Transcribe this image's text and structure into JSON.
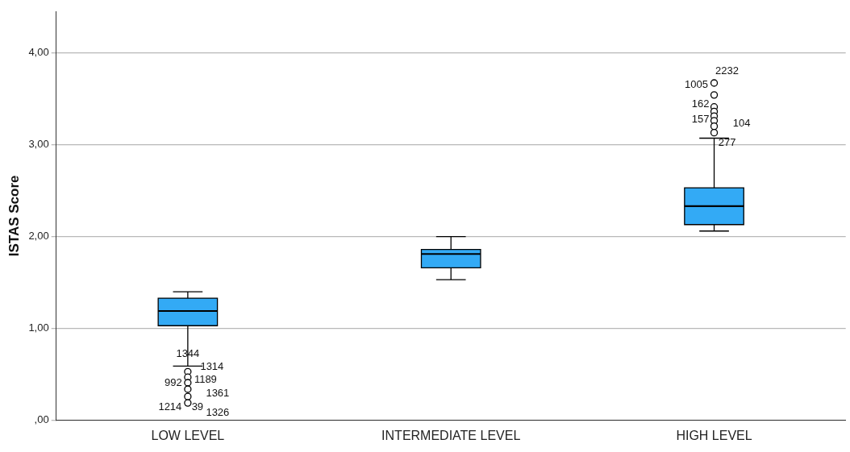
{
  "chart_data": {
    "type": "box",
    "ylabel": "ISTAS Score",
    "categories": [
      "LOW LEVEL",
      "INTERMEDIATE LEVEL",
      "HIGH LEVEL"
    ],
    "color": "#33aaf5",
    "boxes": [
      {
        "low": 0.59,
        "q1": 1.03,
        "median": 1.19,
        "q3": 1.33,
        "high": 1.4,
        "outliers": [
          0.53,
          0.47,
          0.41,
          0.34,
          0.26,
          0.19
        ]
      },
      {
        "low": 1.53,
        "q1": 1.66,
        "median": 1.81,
        "q3": 1.86,
        "high": 2.0
      },
      {
        "low": 2.06,
        "q1": 2.13,
        "median": 2.33,
        "q3": 2.53,
        "high": 3.07,
        "outliers": [
          3.67,
          3.54,
          3.41,
          3.36,
          3.31,
          3.26,
          3.2,
          3.13
        ]
      }
    ],
    "ylim": [
      0,
      4.45
    ],
    "yticks": [
      {
        "value": 0,
        "label": ",00"
      },
      {
        "value": 1,
        "label": "1,00"
      },
      {
        "value": 2,
        "label": "2,00"
      },
      {
        "value": 3,
        "label": "3,00"
      },
      {
        "value": 4,
        "label": "4,00"
      }
    ],
    "grid": "y",
    "legend": false,
    "marker": "circle",
    "annotations": [
      "1344",
      "1314",
      "992",
      "1189",
      "1361",
      "1214",
      "39",
      "1326",
      "2232",
      "1005",
      "162",
      "157",
      "104",
      "277"
    ]
  }
}
